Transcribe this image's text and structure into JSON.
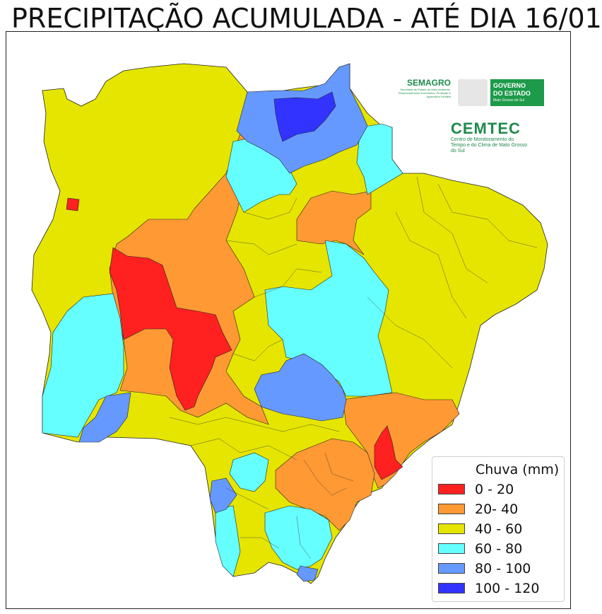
{
  "title": "PRECIPITAÇÃO ACUMULADA - ATÉ DIA 16/01",
  "logos": {
    "semagro": "SEMAGRO",
    "semagro_sub": "Secretaria de Estado de Meio Ambiente, Desenvolvimento Econômico, Produção e Agricultura Familiar",
    "gov_line1": "GOVERNO",
    "gov_line2": "DO ESTADO",
    "gov_line3": "Mato Grosso do Sul",
    "cemtec": "CEMTEC",
    "cemtec_sub": "Centro de Monitoramento do Tempo e do Clima de Mato Grosso do Sul"
  },
  "legend": {
    "title": "Chuva (mm)",
    "items": [
      {
        "label": "0 - 20",
        "color": "#ff2020"
      },
      {
        "label": "20- 40",
        "color": "#ff9933"
      },
      {
        "label": "40 - 60",
        "color": "#e5e500"
      },
      {
        "label": "60 - 80",
        "color": "#66ffff"
      },
      {
        "label": "80 - 100",
        "color": "#6699ff"
      },
      {
        "label": "100 - 120",
        "color": "#3333ff"
      }
    ]
  }
}
